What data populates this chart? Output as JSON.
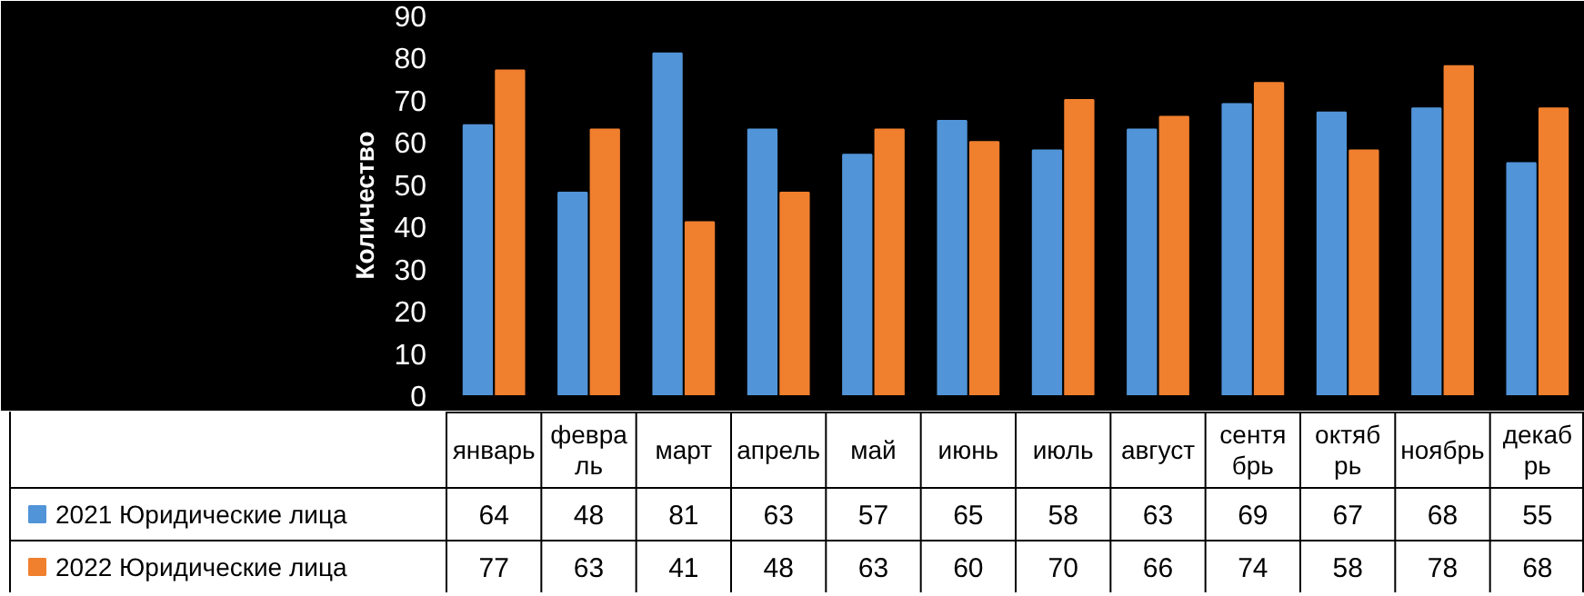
{
  "chart_data": {
    "type": "bar",
    "ylabel": "Количество",
    "categories": [
      "январь",
      "февраль",
      "март",
      "апрель",
      "май",
      "июнь",
      "июль",
      "август",
      "сентябрь",
      "октябрь",
      "ноябрь",
      "декабрь"
    ],
    "series": [
      {
        "name": "2021 Юридические лица",
        "color": "#5194d8",
        "values": [
          64,
          48,
          81,
          63,
          57,
          65,
          58,
          63,
          69,
          67,
          68,
          55
        ]
      },
      {
        "name": "2022 Юридические лица",
        "color": "#f07f2e",
        "values": [
          77,
          63,
          41,
          48,
          63,
          60,
          70,
          66,
          74,
          58,
          78,
          68
        ]
      }
    ],
    "ylim": [
      0,
      90
    ],
    "yticks": [
      0,
      10,
      20,
      30,
      40,
      50,
      60,
      70,
      80,
      90
    ],
    "grid": false,
    "legend": "bottom",
    "data_labels": true
  }
}
